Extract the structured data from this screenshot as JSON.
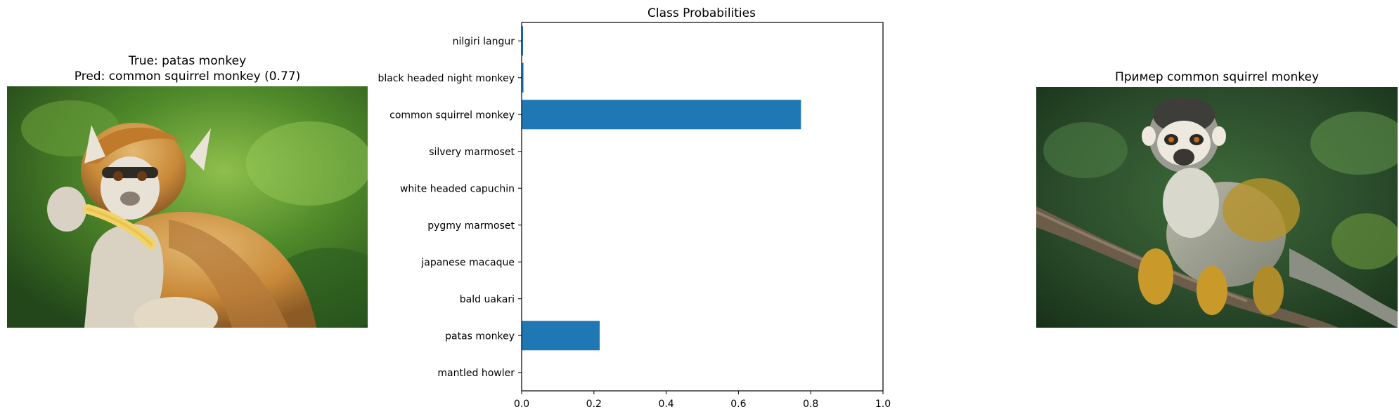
{
  "left_panel": {
    "title_line1": "True: patas monkey",
    "title_line2": "Pred: common squirrel monkey (0.77)",
    "image_subject": "patas-monkey-photo"
  },
  "right_panel": {
    "title": "Пример common squirrel monkey",
    "image_subject": "squirrel-monkey-photo"
  },
  "chart_data": {
    "type": "bar",
    "orientation": "horizontal",
    "title": "Class Probabilities",
    "xlabel": "",
    "ylabel": "",
    "xlim": [
      0,
      1.0
    ],
    "xticks": [
      "0.0",
      "0.2",
      "0.4",
      "0.6",
      "0.8",
      "1.0"
    ],
    "grid": false,
    "categories": [
      "nilgiri langur",
      "black headed night monkey",
      "common squirrel monkey",
      "silvery marmoset",
      "white headed capuchin",
      "pygmy marmoset",
      "japanese macaque",
      "bald uakari",
      "patas monkey",
      "mantled howler"
    ],
    "values": [
      0.004,
      0.005,
      0.773,
      0.0005,
      0.0005,
      0.0003,
      0.0003,
      0.0003,
      0.216,
      0.0003
    ],
    "bar_color": "#1f77b4"
  }
}
